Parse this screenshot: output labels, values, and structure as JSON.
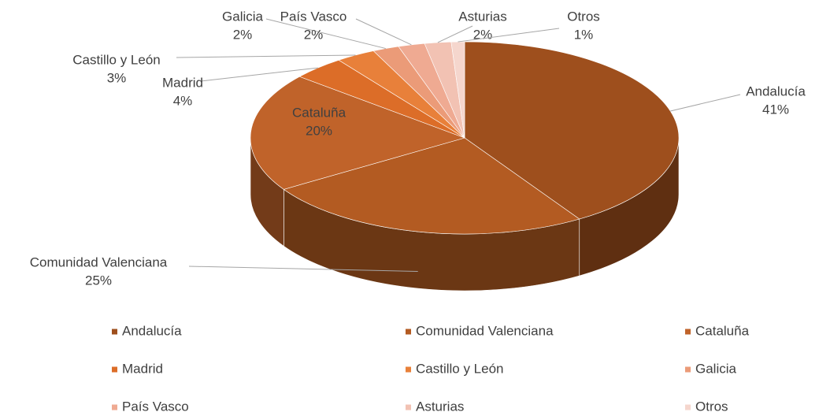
{
  "chart_data": {
    "type": "pie3d",
    "categories": [
      "Andalucía",
      "Comunidad Valenciana",
      "Cataluña",
      "Madrid",
      "Castillo y León",
      "Galicia",
      "País Vasco",
      "Asturias",
      "Otros"
    ],
    "values": [
      41,
      25,
      20,
      4,
      3,
      2,
      2,
      2,
      1
    ],
    "value_labels": [
      "41%",
      "25%",
      "20%",
      "4%",
      "3%",
      "2%",
      "2%",
      "2%",
      "1%"
    ],
    "colors": [
      "#9e4f1d",
      "#b35b22",
      "#c0632a",
      "#dc6d28",
      "#e8803a",
      "#eb9b78",
      "#efaa92",
      "#f2c2b3",
      "#f5d6cd"
    ],
    "legend": "bottom"
  }
}
